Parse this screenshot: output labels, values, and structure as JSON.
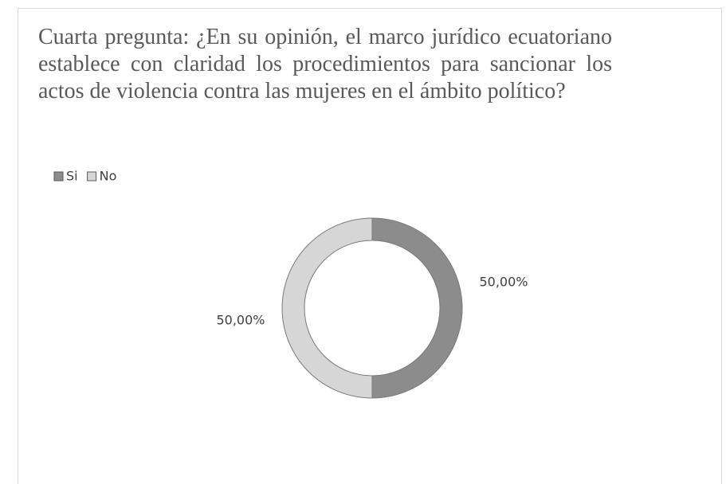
{
  "chart_data": {
    "type": "donut",
    "title": "Cuarta pregunta: ¿En su opinión, el marco jurídico ecuatoriano establece con claridad los procedimientos para sancionar los actos de violencia contra las mujeres en el ámbito político?",
    "categories": [
      "Si",
      "No"
    ],
    "values": [
      50,
      50
    ],
    "value_labels": [
      "50,00%",
      "50,00%"
    ],
    "colors": [
      "#8c8c8c",
      "#d6d6d6"
    ],
    "legend": "top-left"
  }
}
